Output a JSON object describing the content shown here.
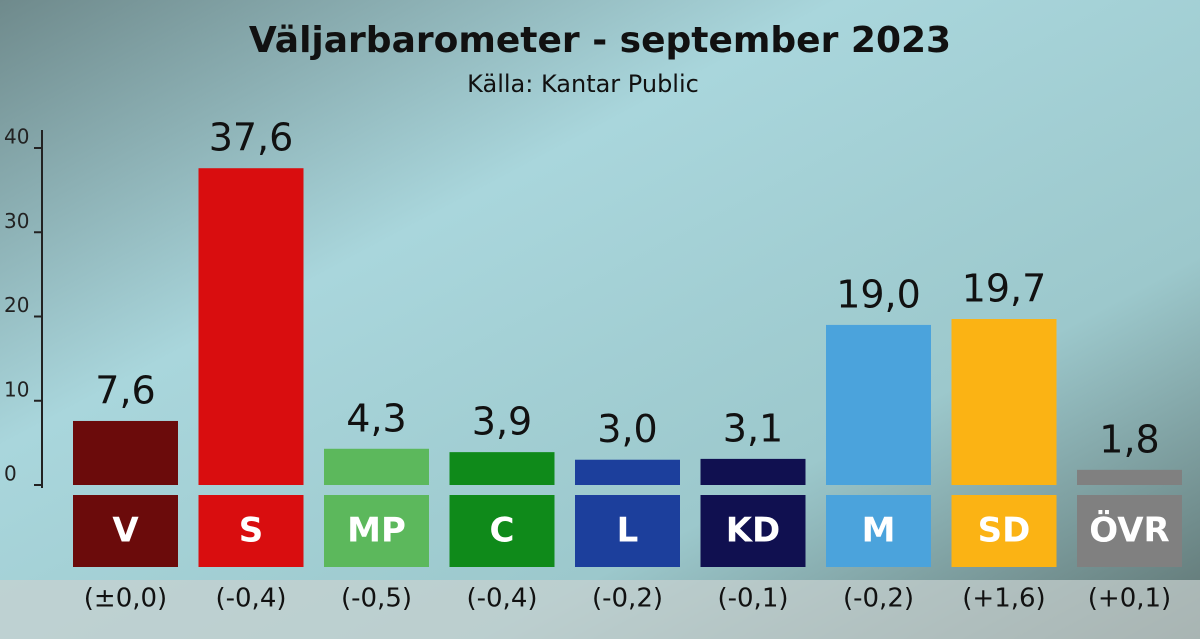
{
  "chart_data": {
    "type": "bar",
    "title": "Väljarbarometer - september 2023",
    "subtitle": "Källa: Kantar Public",
    "categories": [
      "V",
      "S",
      "MP",
      "C",
      "L",
      "KD",
      "M",
      "SD",
      "ÖVR"
    ],
    "values": [
      7.6,
      37.6,
      4.3,
      3.9,
      3.0,
      3.1,
      19.0,
      19.7,
      1.8
    ],
    "value_labels": [
      "7,6",
      "37,6",
      "4,3",
      "3,9",
      "3,0",
      "3,1",
      "19,0",
      "19,7",
      "1,8"
    ],
    "change_labels": [
      "(±0,0)",
      "(-0,4)",
      "(-0,5)",
      "(-0,4)",
      "(-0,2)",
      "(-0,1)",
      "(-0,2)",
      "(+1,6)",
      "(+0,1)"
    ],
    "colors": [
      "#6b0b0b",
      "#d90d0f",
      "#5cb85c",
      "#0f8a1a",
      "#1c3f9c",
      "#101050",
      "#4ba3dc",
      "#fbb314",
      "#808080"
    ],
    "ylim": [
      0,
      40
    ],
    "yticks": [
      0,
      10,
      20,
      30,
      40
    ]
  }
}
